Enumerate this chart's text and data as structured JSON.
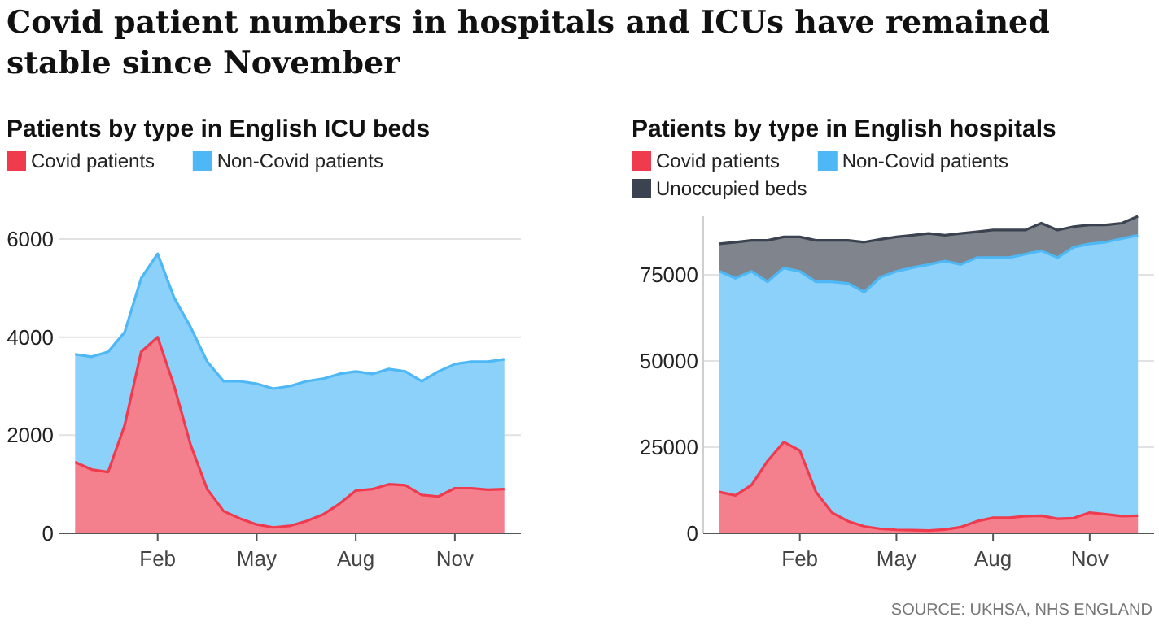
{
  "chart_data": [
    {
      "type": "area",
      "title": "Patients by type in English ICU beds",
      "annotations": [
        "Covid patient numbers in hospitals and ICUs have remained stable since November"
      ],
      "stacked": true,
      "grid": "y",
      "legend": "top left",
      "categories": [
        null,
        null,
        null,
        null,
        null,
        "Feb",
        null,
        null,
        null,
        null,
        null,
        "May",
        null,
        null,
        null,
        null,
        null,
        "Aug",
        null,
        null,
        null,
        null,
        null,
        "Nov",
        null,
        null,
        null
      ],
      "series": [
        {
          "name": "Covid patients",
          "color": "#f03b4f",
          "values": [
            1450,
            1300,
            1250,
            2200,
            3700,
            4000,
            3000,
            1800,
            900,
            450,
            300,
            180,
            120,
            150,
            250,
            380,
            600,
            870,
            900,
            1000,
            980,
            780,
            750,
            920,
            920,
            890,
            900
          ]
        },
        {
          "name": "Non-Covid patients",
          "color": "#4db8f5",
          "values": [
            2200,
            2300,
            2450,
            1900,
            1500,
            1700,
            1800,
            2400,
            2600,
            2650,
            2800,
            2870,
            2830,
            2850,
            2850,
            2770,
            2650,
            2430,
            2350,
            2350,
            2320,
            2320,
            2550,
            2530,
            2580,
            2610,
            2650
          ]
        }
      ],
      "ylim": [
        0,
        6000
      ],
      "yticks": [
        0,
        2000,
        4000,
        6000
      ]
    },
    {
      "type": "area",
      "title": "Patients by type in English hospitals",
      "annotations": [
        "SOURCE: UKHSA, NHS ENGLAND"
      ],
      "stacked": true,
      "grid": "y",
      "legend": "top left",
      "categories": [
        null,
        null,
        null,
        null,
        null,
        "Feb",
        null,
        null,
        null,
        null,
        null,
        "May",
        null,
        null,
        null,
        null,
        null,
        "Aug",
        null,
        null,
        null,
        null,
        null,
        "Nov",
        null,
        null,
        null
      ],
      "series": [
        {
          "name": "Covid patients",
          "color": "#f03b4f",
          "values": [
            12000,
            11000,
            14000,
            21000,
            26500,
            24000,
            12000,
            6000,
            3500,
            2000,
            1300,
            1000,
            900,
            800,
            1100,
            1800,
            3500,
            4500,
            4500,
            5000,
            5100,
            4200,
            4400,
            6000,
            5500,
            5000,
            5100
          ]
        },
        {
          "name": "Non-Covid patients",
          "color": "#4db8f5",
          "values": [
            64000,
            63000,
            62000,
            52000,
            50500,
            52000,
            61000,
            67000,
            69000,
            68000,
            73000,
            75000,
            76200,
            77200,
            77900,
            76200,
            76500,
            75500,
            75500,
            76000,
            76900,
            75800,
            78600,
            78000,
            79000,
            80500,
            81400
          ]
        },
        {
          "name": "Unoccupied beds",
          "color": "#3b4350",
          "values": [
            8000,
            10500,
            9000,
            12000,
            9000,
            10000,
            12000,
            12000,
            12500,
            14500,
            11000,
            10000,
            9400,
            9000,
            7500,
            9000,
            7500,
            8000,
            8000,
            7000,
            8000,
            8000,
            6000,
            5500,
            5000,
            4500,
            5500
          ]
        }
      ],
      "ylim": [
        0,
        92000
      ],
      "yticks": [
        0,
        25000,
        50000,
        75000
      ]
    }
  ]
}
